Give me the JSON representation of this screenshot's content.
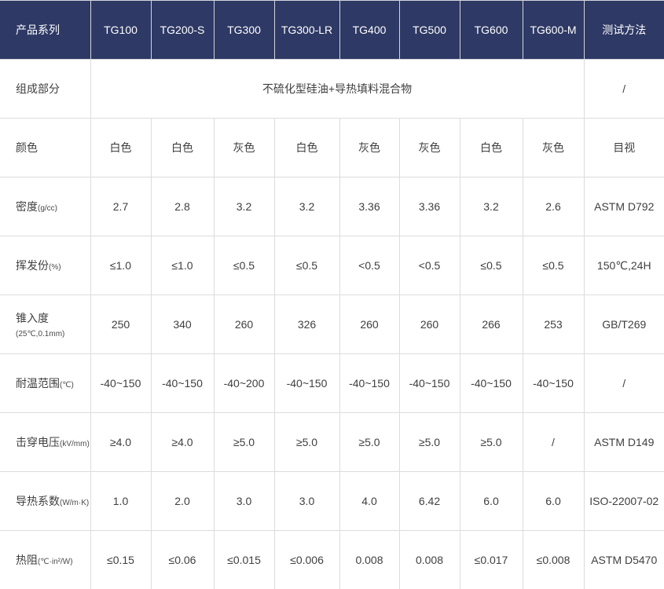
{
  "colors": {
    "header_bg": "#2e3965",
    "header_text": "#ffffff",
    "body_text": "#3f3f3f",
    "header_border": "#d2d4db",
    "body_border": "#dcdcdc"
  },
  "table": {
    "header": {
      "label": "产品系列",
      "products": [
        "TG100",
        "TG200-S",
        "TG300",
        "TG300-LR",
        "TG400",
        "TG500",
        "TG600",
        "TG600-M"
      ],
      "method": "测试方法"
    },
    "composition": {
      "label": "组成部分",
      "value": "不硫化型硅油+导热填料混合物",
      "method": "/"
    },
    "rows": [
      {
        "label": "颜色",
        "unit": "",
        "values": [
          "白色",
          "白色",
          "灰色",
          "白色",
          "灰色",
          "灰色",
          "白色",
          "灰色"
        ],
        "method": "目视"
      },
      {
        "label": "密度",
        "unit": "(g/cc)",
        "values": [
          "2.7",
          "2.8",
          "3.2",
          "3.2",
          "3.36",
          "3.36",
          "3.2",
          "2.6"
        ],
        "method": "ASTM D792"
      },
      {
        "label": "挥发份",
        "unit": "(%)",
        "values": [
          "≤1.0",
          "≤1.0",
          "≤0.5",
          "≤0.5",
          "<0.5",
          "<0.5",
          "≤0.5",
          "≤0.5"
        ],
        "method": "150℃,24H"
      },
      {
        "label": "锥入度",
        "unit": "(25℃,0.1mm)",
        "values": [
          "250",
          "340",
          "260",
          "326",
          "260",
          "260",
          "266",
          "253"
        ],
        "method": "GB/T269"
      },
      {
        "label": "耐温范围",
        "unit": "(℃)",
        "values": [
          "-40~150",
          "-40~150",
          "-40~200",
          "-40~150",
          "-40~150",
          "-40~150",
          "-40~150",
          "-40~150"
        ],
        "method": "/"
      },
      {
        "label": "击穿电压",
        "unit": "(kV/mm)",
        "values": [
          "≥4.0",
          "≥4.0",
          "≥5.0",
          "≥5.0",
          "≥5.0",
          "≥5.0",
          "≥5.0",
          "/"
        ],
        "method": "ASTM D149"
      },
      {
        "label": "导热系数",
        "unit": "(W/m·K)",
        "values": [
          "1.0",
          "2.0",
          "3.0",
          "3.0",
          "4.0",
          "6.42",
          "6.0",
          "6.0"
        ],
        "method": "ISO-22007-02"
      },
      {
        "label": "热阻",
        "unit": "(℃·in²/W)",
        "values": [
          "≤0.15",
          "≤0.06",
          "≤0.015",
          "≤0.006",
          "0.008",
          "0.008",
          "≤0.017",
          "≤0.008"
        ],
        "method": "ASTM D5470"
      }
    ]
  }
}
